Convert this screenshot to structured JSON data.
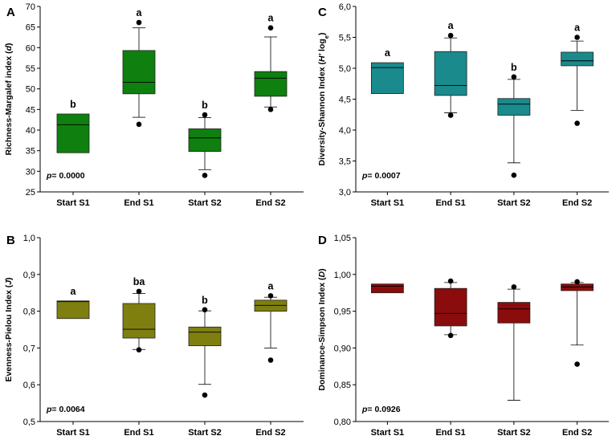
{
  "chart_data": [
    {
      "id": "A",
      "type": "boxplot",
      "panel_label": "A",
      "ylabel_parts": [
        "Richness-Margalef index (",
        "d",
        ")"
      ],
      "ylim": [
        25,
        70
      ],
      "yticks": [
        25,
        30,
        35,
        40,
        45,
        50,
        55,
        60,
        65,
        70
      ],
      "ytick_labels": [
        "25",
        "30",
        "35",
        "40",
        "45",
        "50",
        "55",
        "60",
        "65",
        "70"
      ],
      "categories": [
        "Start S1",
        "End S1",
        "Start S2",
        "End S2"
      ],
      "color": "#0f7f0f",
      "p_label": "p",
      "p_value": "= 0.0000",
      "boxes": [
        {
          "q1": 34.5,
          "median": 41.3,
          "q3": 43.9,
          "whisker_low": null,
          "whisker_high": null,
          "outliers": [],
          "sig": "b"
        },
        {
          "q1": 48.8,
          "median": 51.6,
          "q3": 59.3,
          "whisker_low": 43.1,
          "whisker_high": 64.8,
          "outliers": [
            41.4,
            66.1
          ],
          "sig": "a"
        },
        {
          "q1": 34.8,
          "median": 38.1,
          "q3": 40.3,
          "whisker_low": 30.4,
          "whisker_high": 43.0,
          "outliers": [
            29.0,
            43.7
          ],
          "sig": "b"
        },
        {
          "q1": 48.2,
          "median": 52.6,
          "q3": 54.2,
          "whisker_low": 45.6,
          "whisker_high": 62.6,
          "outliers": [
            45.0,
            64.8
          ],
          "sig": "a"
        }
      ]
    },
    {
      "id": "C",
      "type": "boxplot",
      "panel_label": "C",
      "ylabel_parts": [
        "Diversity-Shannon Index (",
        "H'",
        " log",
        "e",
        ")"
      ],
      "ylim": [
        3.0,
        6.0
      ],
      "yticks": [
        3.0,
        3.5,
        4.0,
        4.5,
        5.0,
        5.5,
        6.0
      ],
      "ytick_labels": [
        "3,0",
        "3,5",
        "4,0",
        "4,5",
        "5,0",
        "5,5",
        "6,0"
      ],
      "categories": [
        "Start S1",
        "End S1",
        "Start S2",
        "End S2"
      ],
      "color": "#1a8a8c",
      "p_label": "p",
      "p_value": "= 0.0007",
      "boxes": [
        {
          "q1": 4.59,
          "median": 5.01,
          "q3": 5.09,
          "whisker_low": null,
          "whisker_high": null,
          "outliers": [],
          "sig": "a"
        },
        {
          "q1": 4.56,
          "median": 4.72,
          "q3": 5.27,
          "whisker_low": 4.28,
          "whisker_high": 5.49,
          "outliers": [
            4.24,
            5.53
          ],
          "sig": "a"
        },
        {
          "q1": 4.24,
          "median": 4.42,
          "q3": 4.51,
          "whisker_low": 3.47,
          "whisker_high": 4.82,
          "outliers": [
            3.27,
            4.86
          ],
          "sig": "b"
        },
        {
          "q1": 5.04,
          "median": 5.12,
          "q3": 5.26,
          "whisker_low": 4.32,
          "whisker_high": 5.44,
          "outliers": [
            4.11,
            5.5
          ],
          "sig": "a"
        }
      ]
    },
    {
      "id": "B",
      "type": "boxplot",
      "panel_label": "B",
      "ylabel_parts": [
        "Evenness-Pielou Index (",
        "J",
        ")"
      ],
      "ylim": [
        0.5,
        1.0
      ],
      "yticks": [
        0.5,
        0.6,
        0.7,
        0.8,
        0.9,
        1.0
      ],
      "ytick_labels": [
        "0,5",
        "0,6",
        "0,7",
        "0,8",
        "0,9",
        "1,0"
      ],
      "categories": [
        "Start S1",
        "End S1",
        "Start S2",
        "End S2"
      ],
      "color": "#7f7f10",
      "p_label": "p",
      "p_value": "= 0.0064",
      "boxes": [
        {
          "q1": 0.78,
          "median": 0.826,
          "q3": 0.828,
          "whisker_low": null,
          "whisker_high": null,
          "outliers": [],
          "sig": "a"
        },
        {
          "q1": 0.727,
          "median": 0.751,
          "q3": 0.821,
          "whisker_low": 0.696,
          "whisker_high": 0.848,
          "outliers": [
            0.695,
            0.854
          ],
          "sig": "ba"
        },
        {
          "q1": 0.706,
          "median": 0.743,
          "q3": 0.757,
          "whisker_low": 0.601,
          "whisker_high": 0.801,
          "outliers": [
            0.572,
            0.804
          ],
          "sig": "b"
        },
        {
          "q1": 0.8,
          "median": 0.816,
          "q3": 0.83,
          "whisker_low": 0.7,
          "whisker_high": 0.838,
          "outliers": [
            0.667,
            0.842
          ],
          "sig": "a"
        }
      ]
    },
    {
      "id": "D",
      "type": "boxplot",
      "panel_label": "D",
      "ylabel_parts": [
        "Dominance-Simpson Index (",
        "D",
        ")"
      ],
      "ylim": [
        0.8,
        1.05
      ],
      "yticks": [
        0.8,
        0.85,
        0.9,
        0.95,
        1.0,
        1.05
      ],
      "ytick_labels": [
        "0,80",
        "0,85",
        "0,90",
        "0,95",
        "1,00",
        "1,05"
      ],
      "categories": [
        "Start S1",
        "End S1",
        "Start S2",
        "End S2"
      ],
      "color": "#8b0c0c",
      "p_label": "p",
      "p_value": "= 0.0926",
      "boxes": [
        {
          "q1": 0.975,
          "median": 0.984,
          "q3": 0.987,
          "whisker_low": null,
          "whisker_high": null,
          "outliers": [],
          "sig": ""
        },
        {
          "q1": 0.93,
          "median": 0.947,
          "q3": 0.981,
          "whisker_low": 0.918,
          "whisker_high": 0.989,
          "outliers": [
            0.917,
            0.991
          ],
          "sig": ""
        },
        {
          "q1": 0.934,
          "median": 0.953,
          "q3": 0.962,
          "whisker_low": 0.829,
          "whisker_high": 0.98,
          "outliers": [
            0.983
          ],
          "sig": ""
        },
        {
          "q1": 0.978,
          "median": 0.983,
          "q3": 0.987,
          "whisker_low": 0.904,
          "whisker_high": 0.989,
          "outliers": [
            0.878,
            0.99
          ],
          "sig": ""
        }
      ]
    }
  ]
}
